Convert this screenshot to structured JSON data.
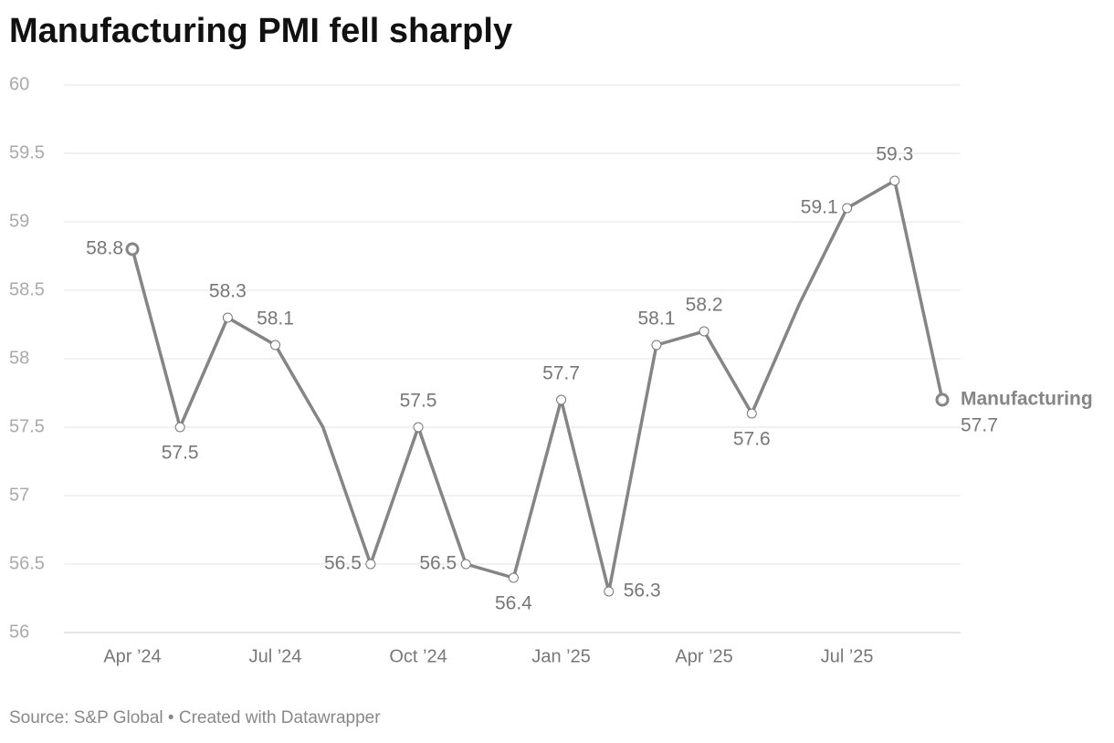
{
  "chart_data": {
    "type": "line",
    "title": "Manufacturing PMI fell sharply",
    "source": "Source: S&P Global • Created with Datawrapper",
    "categories": [
      "Apr ’24",
      null,
      null,
      "Jul ’24",
      null,
      null,
      "Oct ’24",
      null,
      null,
      "Jan ’25",
      null,
      null,
      "Apr ’25",
      null,
      null,
      "Jul ’25",
      null,
      null
    ],
    "series": [
      {
        "name": "Manufacturing",
        "color": "#858585",
        "values": [
          58.8,
          57.5,
          58.3,
          58.1,
          57.5,
          56.5,
          57.5,
          56.5,
          56.4,
          57.7,
          56.3,
          58.1,
          58.2,
          57.6,
          58.4,
          59.1,
          59.3,
          57.7
        ],
        "value_labels": [
          "58.8",
          "57.5",
          "58.3",
          "58.1",
          null,
          "56.5",
          "57.5",
          "56.5",
          "56.4",
          "57.7",
          "56.3",
          "58.1",
          "58.2",
          "57.6",
          null,
          "59.1",
          "59.3",
          "57.7"
        ]
      }
    ],
    "ylim": [
      56,
      60
    ],
    "yticks": [
      56,
      56.5,
      57,
      57.5,
      58,
      58.5,
      59,
      59.5,
      60
    ],
    "grid": true
  }
}
